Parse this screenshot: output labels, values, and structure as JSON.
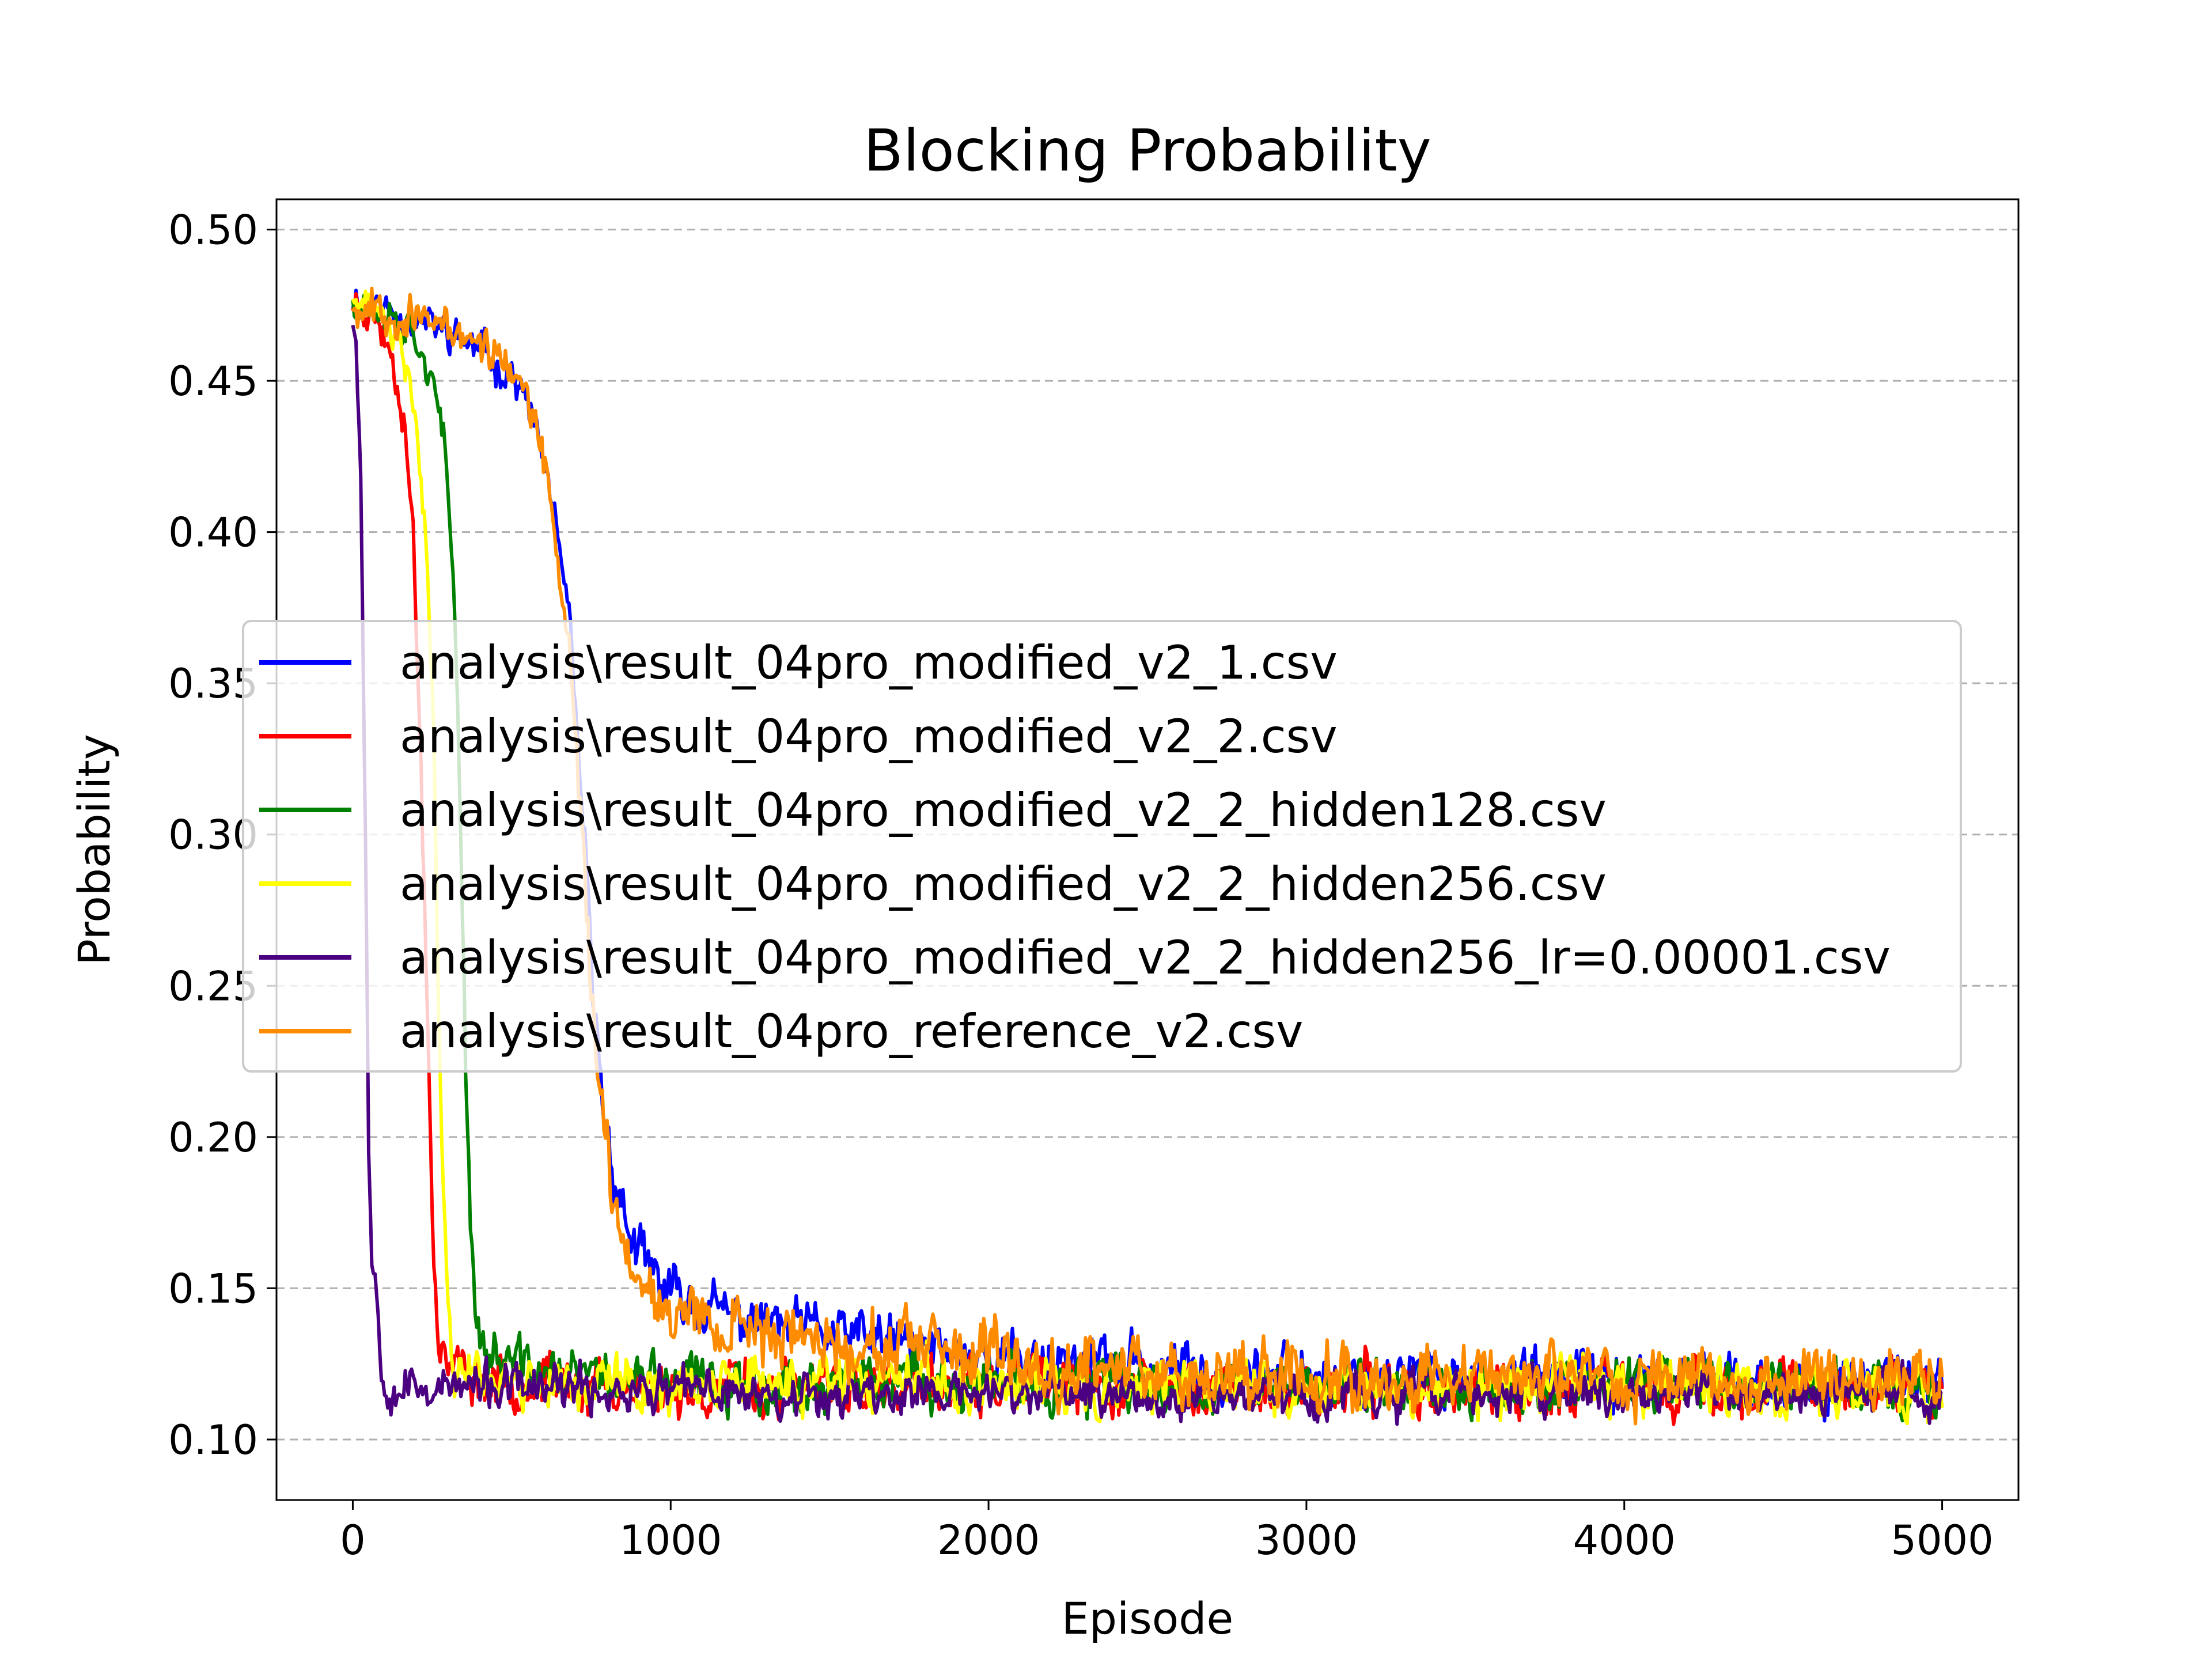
{
  "chart_data": {
    "type": "line",
    "title": "Blocking Probability",
    "xlabel": "Episode",
    "ylabel": "Probability",
    "xlim": [
      -240,
      5240
    ],
    "ylim": [
      0.08,
      0.51
    ],
    "xticks": [
      0,
      1000,
      2000,
      3000,
      4000,
      5000
    ],
    "xtick_labels": [
      "0",
      "1000",
      "2000",
      "3000",
      "4000",
      "5000"
    ],
    "yticks": [
      0.1,
      0.15,
      0.2,
      0.25,
      0.3,
      0.35,
      0.4,
      0.45,
      0.5
    ],
    "ytick_labels": [
      "0.10",
      "0.15",
      "0.20",
      "0.25",
      "0.30",
      "0.35",
      "0.40",
      "0.45",
      "0.50"
    ],
    "grid": "horizontal dashed",
    "legend_position": "center-left",
    "series": [
      {
        "name": "analysis\\result_04pro_modified_v2_1.csv",
        "color": "#0000ff",
        "anchors": [
          [
            0,
            0.478
          ],
          [
            100,
            0.474
          ],
          [
            200,
            0.47
          ],
          [
            300,
            0.466
          ],
          [
            400,
            0.46
          ],
          [
            500,
            0.452
          ],
          [
            560,
            0.44
          ],
          [
            620,
            0.415
          ],
          [
            680,
            0.37
          ],
          [
            720,
            0.31
          ],
          [
            760,
            0.24
          ],
          [
            800,
            0.2
          ],
          [
            850,
            0.175
          ],
          [
            900,
            0.16
          ],
          [
            1000,
            0.148
          ],
          [
            1200,
            0.14
          ],
          [
            1500,
            0.135
          ],
          [
            2000,
            0.128
          ],
          [
            2500,
            0.124
          ],
          [
            3000,
            0.121
          ],
          [
            4000,
            0.12
          ],
          [
            5000,
            0.118
          ]
        ],
        "noise": 0.006,
        "seed": 11
      },
      {
        "name": "analysis\\result_04pro_modified_v2_2.csv",
        "color": "#ff0000",
        "anchors": [
          [
            0,
            0.476
          ],
          [
            60,
            0.474
          ],
          [
            120,
            0.46
          ],
          [
            160,
            0.44
          ],
          [
            190,
            0.4
          ],
          [
            215,
            0.32
          ],
          [
            235,
            0.24
          ],
          [
            250,
            0.18
          ],
          [
            265,
            0.14
          ],
          [
            290,
            0.125
          ],
          [
            400,
            0.12
          ],
          [
            1000,
            0.117
          ],
          [
            2000,
            0.117
          ],
          [
            3000,
            0.117
          ],
          [
            4000,
            0.117
          ],
          [
            5000,
            0.116
          ]
        ],
        "noise": 0.006,
        "seed": 23
      },
      {
        "name": "analysis\\result_04pro_modified_v2_2_hidden128.csv",
        "color": "#008000",
        "anchors": [
          [
            0,
            0.478
          ],
          [
            100,
            0.474
          ],
          [
            200,
            0.466
          ],
          [
            250,
            0.45
          ],
          [
            290,
            0.425
          ],
          [
            320,
            0.38
          ],
          [
            340,
            0.3
          ],
          [
            355,
            0.23
          ],
          [
            370,
            0.17
          ],
          [
            390,
            0.14
          ],
          [
            420,
            0.128
          ],
          [
            600,
            0.122
          ],
          [
            1000,
            0.119
          ],
          [
            2000,
            0.118
          ],
          [
            3000,
            0.118
          ],
          [
            4000,
            0.118
          ],
          [
            5000,
            0.117
          ]
        ],
        "noise": 0.006,
        "seed": 37
      },
      {
        "name": "analysis\\result_04pro_modified_v2_2_hidden256.csv",
        "color": "#ffff00",
        "anchors": [
          [
            0,
            0.476
          ],
          [
            80,
            0.472
          ],
          [
            150,
            0.46
          ],
          [
            200,
            0.44
          ],
          [
            230,
            0.4
          ],
          [
            255,
            0.33
          ],
          [
            270,
            0.25
          ],
          [
            285,
            0.18
          ],
          [
            300,
            0.14
          ],
          [
            320,
            0.125
          ],
          [
            500,
            0.12
          ],
          [
            1000,
            0.118
          ],
          [
            2000,
            0.118
          ],
          [
            3000,
            0.117
          ],
          [
            4000,
            0.117
          ],
          [
            5000,
            0.116
          ]
        ],
        "noise": 0.006,
        "seed": 41
      },
      {
        "name": "analysis\\result_04pro_modified_v2_2_hidden256_lr=0.00001.csv",
        "color": "#4b0082",
        "anchors": [
          [
            0,
            0.472
          ],
          [
            10,
            0.465
          ],
          [
            25,
            0.42
          ],
          [
            40,
            0.3
          ],
          [
            50,
            0.2
          ],
          [
            60,
            0.158
          ],
          [
            75,
            0.15
          ],
          [
            90,
            0.125
          ],
          [
            120,
            0.118
          ],
          [
            300,
            0.117
          ],
          [
            1000,
            0.116
          ],
          [
            2000,
            0.115
          ],
          [
            3000,
            0.115
          ],
          [
            4000,
            0.115
          ],
          [
            5000,
            0.115
          ]
        ],
        "noise": 0.005,
        "seed": 53
      },
      {
        "name": "analysis\\result_04pro_reference_v2.csv",
        "color": "#ff8c00",
        "anchors": [
          [
            0,
            0.476
          ],
          [
            100,
            0.474
          ],
          [
            200,
            0.47
          ],
          [
            300,
            0.467
          ],
          [
            400,
            0.463
          ],
          [
            500,
            0.455
          ],
          [
            560,
            0.44
          ],
          [
            620,
            0.412
          ],
          [
            680,
            0.36
          ],
          [
            730,
            0.29
          ],
          [
            770,
            0.22
          ],
          [
            800,
            0.19
          ],
          [
            850,
            0.165
          ],
          [
            920,
            0.152
          ],
          [
            1000,
            0.145
          ],
          [
            1200,
            0.138
          ],
          [
            1500,
            0.132
          ],
          [
            2000,
            0.126
          ],
          [
            3000,
            0.122
          ],
          [
            4000,
            0.12
          ],
          [
            5000,
            0.12
          ]
        ],
        "noise": 0.007,
        "seed": 67
      }
    ]
  }
}
